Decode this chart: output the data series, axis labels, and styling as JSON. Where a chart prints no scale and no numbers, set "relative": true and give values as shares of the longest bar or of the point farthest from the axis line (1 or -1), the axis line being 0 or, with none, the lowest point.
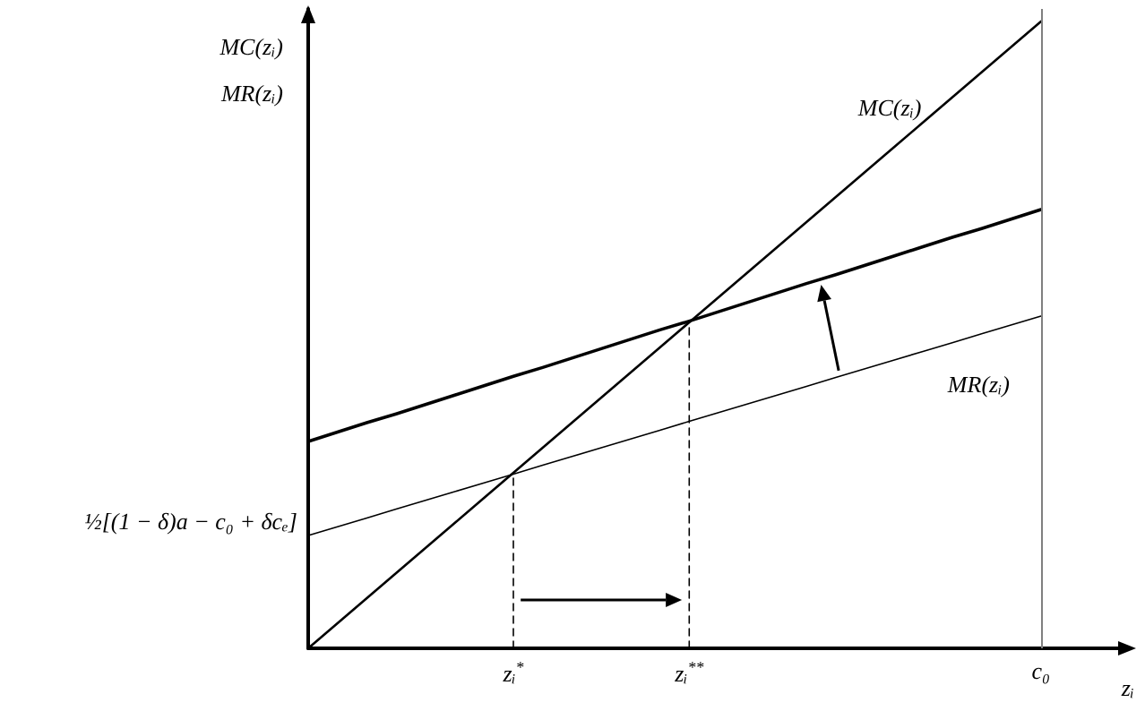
{
  "chart_data": {
    "type": "line",
    "relative": true,
    "xlabel": "zᵢ",
    "ylabel": "MC(zᵢ)\nMR(zᵢ)",
    "categories": [
      null,
      null,
      null,
      null,
      null,
      null,
      null,
      "zᵢ$^{*}$",
      null,
      null,
      null,
      null,
      null,
      "zᵢ$^{**}$",
      null,
      null,
      null,
      null,
      null,
      null,
      null,
      null,
      null,
      null,
      null,
      "c₀",
      null,
      null,
      null
    ],
    "series": [
      {
        "name": "MC(zᵢ)",
        "color": "#000000",
        "values": [
          0,
          0.04,
          0.08,
          0.12,
          0.16,
          0.2,
          0.24,
          0.28,
          0.32,
          0.36,
          0.4,
          0.44,
          0.48,
          0.52,
          0.56,
          0.6,
          0.64,
          0.68,
          0.72,
          0.76,
          0.8,
          0.84,
          0.88,
          0.92,
          0.96,
          1,
          null,
          null,
          null
        ]
      },
      {
        "color": "#000000",
        "values": [
          0.33,
          0.345,
          0.36,
          0.374,
          0.389,
          0.404,
          0.419,
          0.434,
          0.448,
          0.463,
          0.478,
          0.493,
          0.508,
          0.522,
          0.537,
          0.552,
          0.567,
          0.582,
          0.596,
          0.611,
          0.626,
          0.641,
          0.656,
          0.67,
          0.685,
          0.7,
          null,
          null,
          null
        ]
      },
      {
        "name": "MR(zᵢ)",
        "color": "#000000",
        "values": [
          0.18,
          0.194,
          0.208,
          0.222,
          0.236,
          0.25,
          0.264,
          0.278,
          0.292,
          0.306,
          0.32,
          0.334,
          0.348,
          0.362,
          0.376,
          0.39,
          0.404,
          0.418,
          0.432,
          0.446,
          0.46,
          0.474,
          0.488,
          0.502,
          0.516,
          0.53,
          null,
          null,
          null
        ]
      },
      {
        "color": "#000000",
        "x": [
          "zᵢ$^{*}$",
          "zᵢ$^{*}$"
        ],
        "values": [
          0,
          0.28
        ],
        "line_style": "dashed"
      },
      {
        "color": "#000000",
        "x": [
          "zᵢ$^{**}$",
          "zᵢ$^{**}$"
        ],
        "values": [
          0,
          0.52
        ],
        "line_style": "dashed"
      }
    ],
    "ref_lines": [
      {
        "axis": "x",
        "value": "c₀",
        "color": "#808080"
      }
    ],
    "annotations": [
      "½[(1 − δ)a − c₀ + δcₑ]"
    ],
    "legend": false,
    "grid": false,
    "marker": "none"
  }
}
